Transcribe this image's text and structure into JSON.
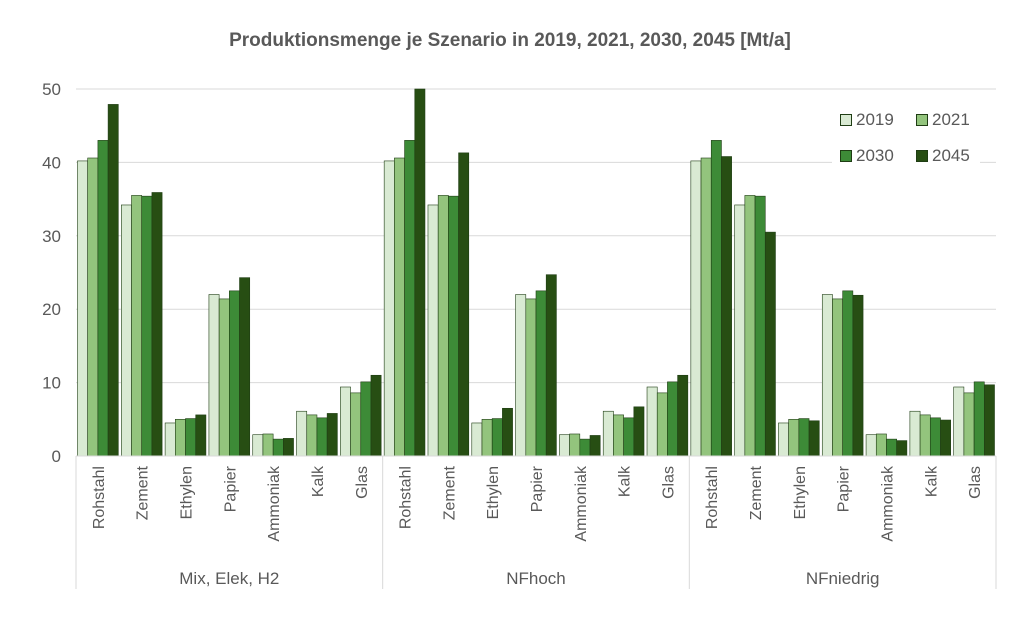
{
  "chart_data": {
    "type": "bar",
    "title": "Produktionsmenge je Szenario in 2019, 2021, 2030, 2045 [Mt/a]",
    "xlabel": "",
    "ylabel": "",
    "ylim": [
      0,
      50
    ],
    "yticks": [
      0,
      10,
      20,
      30,
      40,
      50
    ],
    "grid": true,
    "legend_position": "top-right",
    "groups": [
      "Mix, Elek, H2",
      "NFhoch",
      "NFniedrig"
    ],
    "categories": [
      "Rohstahl",
      "Zement",
      "Ethylen",
      "Papier",
      "Ammoniak",
      "Kalk",
      "Glas"
    ],
    "series": [
      {
        "name": "2019",
        "color": "#d9ead3",
        "values": [
          [
            40.2,
            34.2,
            4.5,
            22.0,
            2.9,
            6.1,
            9.4
          ],
          [
            40.2,
            34.2,
            4.5,
            22.0,
            2.9,
            6.1,
            9.4
          ],
          [
            40.2,
            34.2,
            4.5,
            22.0,
            2.9,
            6.1,
            9.4
          ]
        ]
      },
      {
        "name": "2021",
        "color": "#93c47d",
        "values": [
          [
            40.6,
            35.5,
            5.0,
            21.4,
            3.0,
            5.6,
            8.6
          ],
          [
            40.6,
            35.5,
            5.0,
            21.4,
            3.0,
            5.6,
            8.6
          ],
          [
            40.6,
            35.5,
            5.0,
            21.4,
            3.0,
            5.6,
            8.6
          ]
        ]
      },
      {
        "name": "2030",
        "color": "#3d8b37",
        "values": [
          [
            43.0,
            35.4,
            5.1,
            22.5,
            2.3,
            5.2,
            10.1
          ],
          [
            43.0,
            35.4,
            5.1,
            22.5,
            2.3,
            5.2,
            10.1
          ],
          [
            43.0,
            35.4,
            5.1,
            22.5,
            2.3,
            5.2,
            10.1
          ]
        ]
      },
      {
        "name": "2045",
        "color": "#274e13",
        "values": [
          [
            47.9,
            35.9,
            5.6,
            24.3,
            2.4,
            5.8,
            11.0
          ],
          [
            50.0,
            41.3,
            6.5,
            24.7,
            2.8,
            6.7,
            11.0
          ],
          [
            40.8,
            30.5,
            4.8,
            21.9,
            2.1,
            4.9,
            9.7
          ]
        ]
      }
    ]
  }
}
